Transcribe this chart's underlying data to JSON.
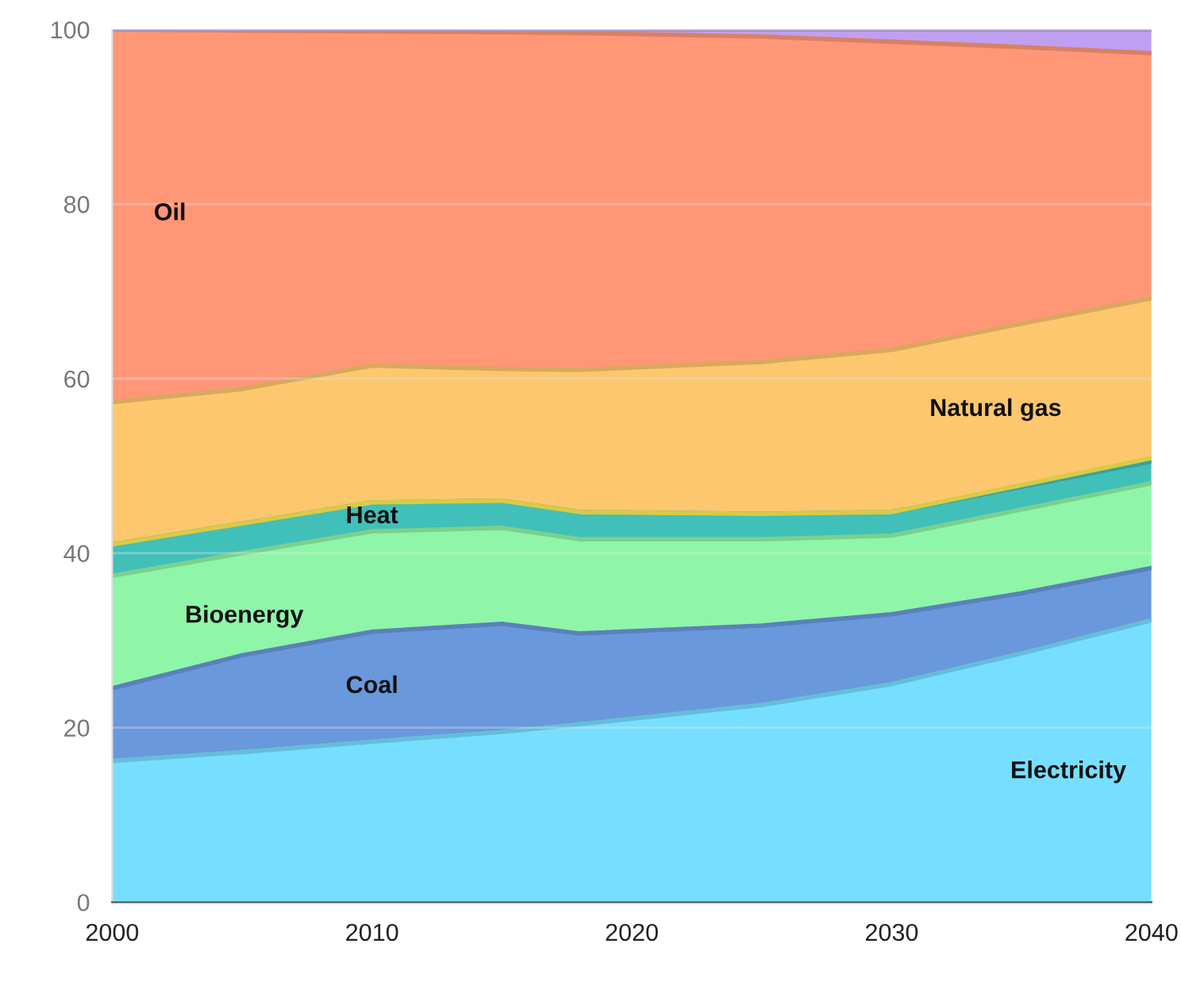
{
  "chart_data": {
    "type": "area",
    "stacked": true,
    "x": [
      2000,
      2005,
      2010,
      2015,
      2018,
      2025,
      2030,
      2035,
      2040
    ],
    "xlim": [
      2000,
      2040
    ],
    "xticks": [
      2000,
      2010,
      2020,
      2030,
      2040
    ],
    "ylim": [
      0,
      100
    ],
    "yticks": [
      0,
      20,
      40,
      60,
      80,
      100
    ],
    "grid": "y",
    "legend": false,
    "series": [
      {
        "name": "Electricity",
        "color": "#76dfff",
        "values": [
          16.2,
          17.2,
          18.4,
          19.5,
          20.4,
          22.6,
          25,
          28.5,
          32.3
        ]
      },
      {
        "name": "Coal",
        "color": "#6a98dc",
        "values": [
          8.3,
          11.1,
          12.6,
          12.4,
          10.4,
          9.1,
          8,
          6.9,
          6
        ]
      },
      {
        "name": "Bioenergy",
        "color": "#8ff5a8",
        "values": [
          12.9,
          11.7,
          11.5,
          11,
          10.8,
          9.9,
          9,
          9.6,
          9.7
        ]
      },
      {
        "name": "Heat",
        "color": "#40c0b8",
        "values": [
          3.6,
          3.4,
          3.3,
          3.1,
          3.1,
          2.9,
          2.7,
          2.6,
          2.5
        ]
      },
      {
        "color": "#ffee55",
        "values": [
          0,
          0,
          0,
          0,
          0,
          0,
          0,
          0.2,
          0.4
        ]
      },
      {
        "name": "Natural gas",
        "color": "#fdc76e",
        "values": [
          16.3,
          15.4,
          15.7,
          15.1,
          16.3,
          17.4,
          18.6,
          18.5,
          18.3
        ]
      },
      {
        "name": "Oil",
        "color": "#ff9777",
        "values": [
          42.7,
          41.1,
          38.3,
          38.6,
          38.6,
          37.3,
          35.3,
          31.7,
          28.1
        ]
      },
      {
        "color": "#c19ff0",
        "values": [
          0,
          0.1,
          0.2,
          0.3,
          0.4,
          0.8,
          1.4,
          2,
          2.7
        ]
      }
    ]
  }
}
